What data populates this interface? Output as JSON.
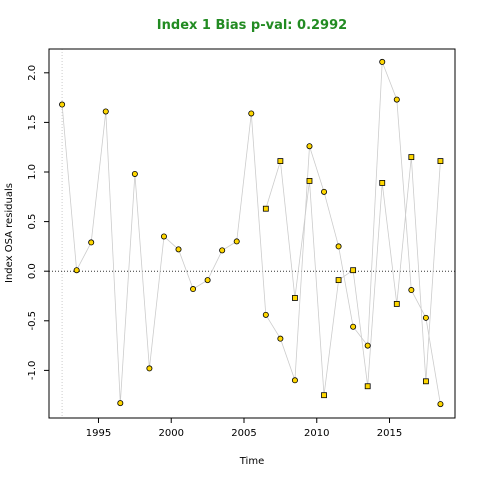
{
  "chart_data": {
    "type": "scatter",
    "title": "Index 1 Bias p-val: 0.2992",
    "xlabel": "Time",
    "ylabel": "Index OSA residuals",
    "xlim": [
      1991.6,
      2019.5
    ],
    "ylim": [
      -1.48,
      2.24
    ],
    "x_ticks": [
      1995,
      2000,
      2005,
      2010,
      2015
    ],
    "y_ticks": [
      -1.0,
      -0.5,
      0.0,
      0.5,
      1.0,
      1.5,
      2.0
    ],
    "y_tick_labels": [
      "-1.0",
      "-0.5",
      "0.0",
      "0.5",
      "1.0",
      "1.5",
      "2.0"
    ],
    "reference_line_y": 0,
    "reference_line_x": 1992.5,
    "point_fill": "#FFD700",
    "point_stroke": "#000000",
    "line_color": "#cccccc",
    "title_color": "#228B22",
    "series": [
      {
        "marker": "circle",
        "x": [
          1992.5,
          1993.5,
          1994.5,
          1995.5,
          1996.5,
          1997.5,
          1998.5,
          1999.5,
          2000.5,
          2001.5,
          2002.5,
          2003.5,
          2004.5,
          2005.5,
          2006.5,
          2007.5,
          2008.5,
          2009.5,
          2010.5,
          2011.5,
          2012.5,
          2013.5,
          2014.5,
          2015.5,
          2016.5,
          2017.5,
          2018.5
        ],
        "y": [
          1.68,
          0.01,
          0.29,
          1.61,
          -1.33,
          0.98,
          -0.98,
          0.35,
          0.22,
          -0.18,
          -0.09,
          0.21,
          0.3,
          1.59,
          -0.44,
          -0.68,
          -1.1,
          1.26,
          0.8,
          0.25,
          -0.56,
          -0.75,
          2.11,
          1.73,
          -0.19,
          -0.47,
          -1.34
        ]
      },
      {
        "marker": "square",
        "x": [
          2006.5,
          2007.5,
          2008.5,
          2009.5,
          2010.5,
          2011.5,
          2012.5,
          2013.5,
          2014.5,
          2015.5,
          2016.5,
          2017.5,
          2018.5
        ],
        "y": [
          0.63,
          1.11,
          -0.27,
          0.91,
          -1.25,
          -0.09,
          0.01,
          -1.16,
          0.89,
          -0.33,
          1.15,
          -1.11,
          1.11
        ]
      }
    ]
  }
}
